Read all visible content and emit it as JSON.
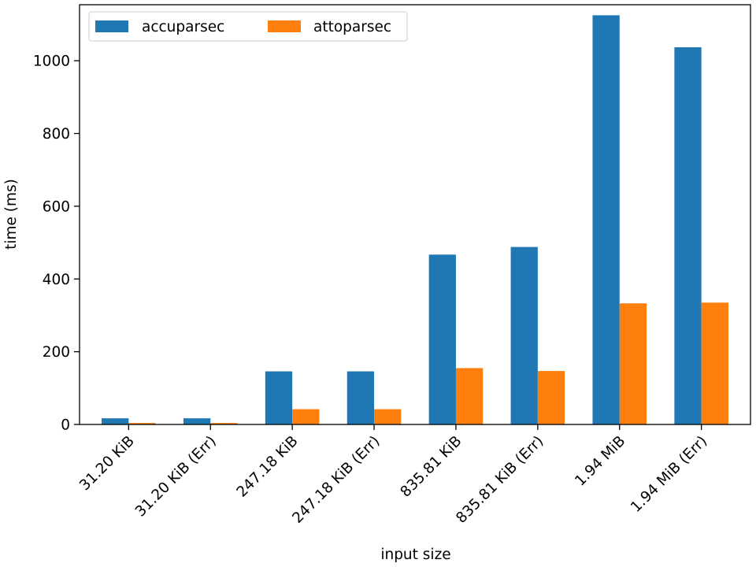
{
  "chart_data": {
    "type": "bar",
    "xlabel": "input size",
    "ylabel": "time (ms)",
    "ylim": [
      0,
      1154
    ],
    "yticks": [
      0,
      200,
      400,
      600,
      800,
      1000
    ],
    "categories": [
      "31.20 KiB",
      "31.20 KiB (Err)",
      "247.18 KiB",
      "247.18 KiB (Err)",
      "835.81 KiB",
      "835.81 KiB (Err)",
      "1.94 MiB",
      "1.94 MiB (Err)"
    ],
    "series": [
      {
        "name": "accuparsec",
        "color": "#1f77b4",
        "values": [
          17,
          17,
          146,
          146,
          467,
          488,
          1125,
          1037
        ]
      },
      {
        "name": "attoparsec",
        "color": "#ff7f0e",
        "values": [
          4,
          4,
          42,
          42,
          155,
          147,
          333,
          335
        ]
      }
    ],
    "legend_position": "top-left",
    "grid": false
  }
}
